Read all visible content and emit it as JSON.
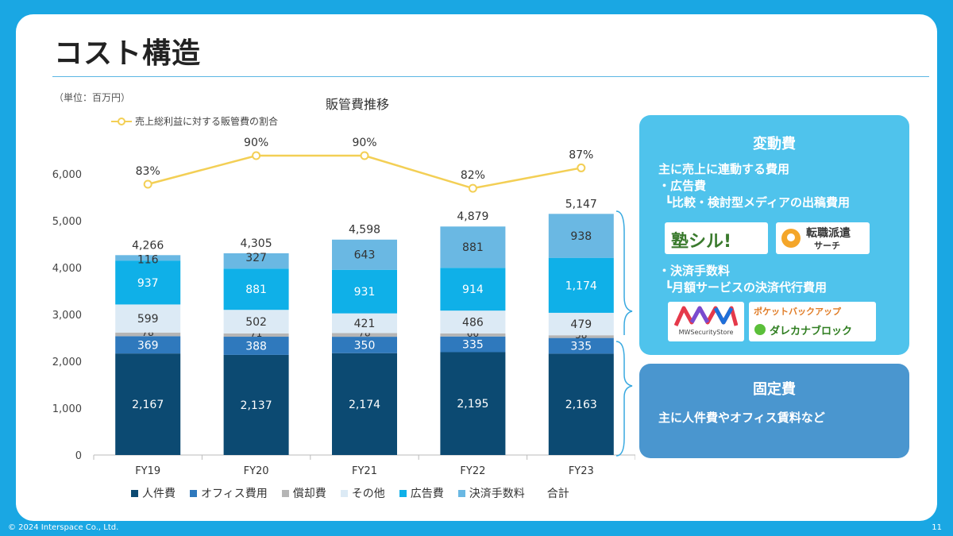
{
  "title": "コスト構造",
  "unit_label": "（単位：百万円）",
  "chart_data": {
    "type": "bar",
    "title": "販管費推移",
    "categories": [
      "FY19",
      "FY20",
      "FY21",
      "FY22",
      "FY23"
    ],
    "ylim": [
      0,
      6000
    ],
    "yticks": [
      "0",
      "1,000",
      "2,000",
      "3,000",
      "4,000",
      "5,000",
      "6,000"
    ],
    "series": [
      {
        "name": "人件費",
        "color": "#0c4a72",
        "values": [
          2167,
          2137,
          2174,
          2195,
          2163
        ],
        "labels": [
          "2,167",
          "2,137",
          "2,174",
          "2,195",
          "2,163"
        ]
      },
      {
        "name": "オフィス費用",
        "color": "#2f79bd",
        "values": [
          369,
          388,
          350,
          335,
          335
        ],
        "labels": [
          "369",
          "388",
          "350",
          "335",
          "335"
        ]
      },
      {
        "name": "償却費",
        "color": "#b5b5b5",
        "values": [
          78,
          71,
          78,
          66,
          58
        ],
        "labels": [
          "78",
          "71",
          "78",
          "66",
          "58"
        ]
      },
      {
        "name": "その他",
        "color": "#dceaf5",
        "values": [
          599,
          502,
          421,
          486,
          479
        ],
        "labels": [
          "599",
          "502",
          "421",
          "486",
          "479"
        ]
      },
      {
        "name": "広告費",
        "color": "#0fb0e8",
        "values": [
          937,
          881,
          931,
          914,
          1174
        ],
        "labels": [
          "937",
          "881",
          "931",
          "914",
          "1,174"
        ]
      },
      {
        "name": "決済手数料",
        "color": "#6ab8e3",
        "values": [
          116,
          327,
          643,
          881,
          938
        ],
        "labels": [
          "116",
          "327",
          "643",
          "881",
          "938"
        ]
      }
    ],
    "totals": [
      4266,
      4305,
      4598,
      4879,
      5147
    ],
    "total_labels": [
      "4,266",
      "4,305",
      "4,598",
      "4,879",
      "5,147"
    ],
    "total_legend": "合計",
    "line": {
      "name": "売上総利益に対する販管費の割合",
      "color": "#f3cf55",
      "values": [
        83,
        90,
        90,
        82,
        87
      ],
      "labels": [
        "83%",
        "90%",
        "90%",
        "82%",
        "87%"
      ]
    }
  },
  "variable_box": {
    "heading": "変動費",
    "line1": "主に売上に連動する費用",
    "line2": "・広告費",
    "line3": "┗比較・検討型メディアの出稿費用",
    "line4": "・決済手数料",
    "line5": "┗月額サービスの決済代行費用",
    "logo_juku": "塾シル!",
    "logo_tenshoku_1": "転職",
    "logo_tenshoku_2": "派遣",
    "logo_tenshoku_3": "サーチ",
    "logo_mw": "MWSecurityStore",
    "logo_pocket": "ポケットバックアップ",
    "logo_dareka": "ダレカナブロック"
  },
  "fixed_box": {
    "heading": "固定費",
    "line1": "主に人件費やオフィス賃料など"
  },
  "footer": "© 2024 Interspace Co., Ltd.",
  "page_number": "11"
}
